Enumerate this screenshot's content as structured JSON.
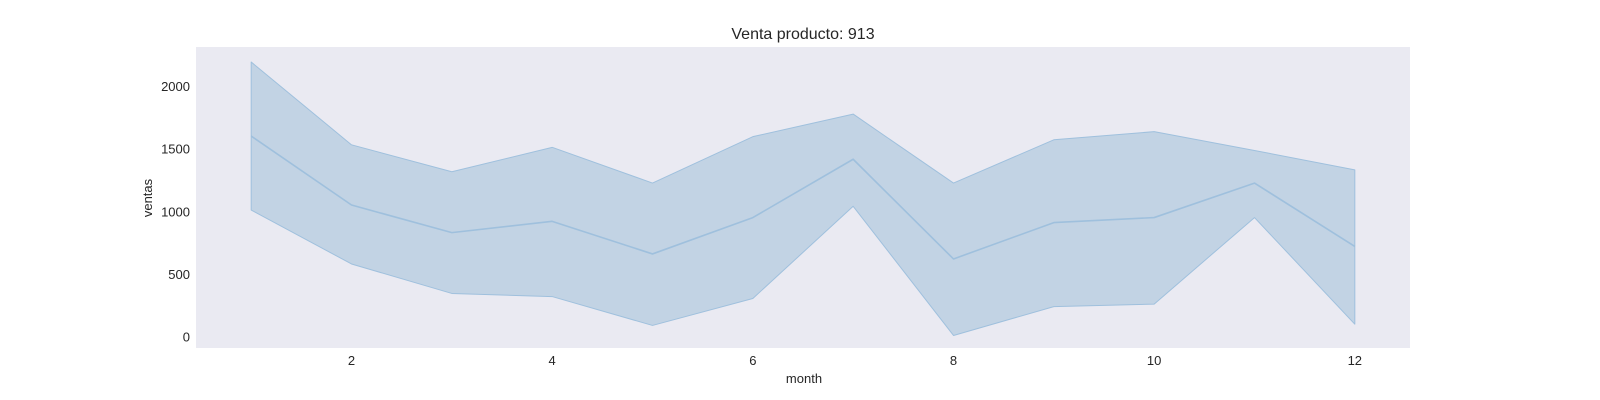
{
  "chart_data": {
    "type": "line",
    "title": "Venta producto: 913",
    "xlabel": "month",
    "ylabel": "ventas",
    "xlim": [
      0.45,
      12.55
    ],
    "ylim": [
      -90,
      2310
    ],
    "xticks": [
      2,
      4,
      6,
      8,
      10,
      12
    ],
    "yticks": [
      0,
      500,
      1000,
      1500,
      2000
    ],
    "grid": false,
    "background": "#eaeaf2",
    "series": [
      {
        "x": [
          1,
          2,
          3,
          4,
          5,
          6,
          7,
          8,
          9,
          10,
          11,
          12
        ],
        "y": [
          1600,
          1050,
          830,
          920,
          660,
          950,
          1415,
          620,
          910,
          950,
          1225,
          720
        ],
        "ci_low": [
          1010,
          580,
          345,
          320,
          90,
          305,
          1040,
          10,
          240,
          260,
          950,
          100
        ],
        "ci_high": [
          2190,
          1530,
          1315,
          1510,
          1225,
          1595,
          1775,
          1225,
          1570,
          1635,
          1485,
          1330
        ],
        "color": "#9fc0dd",
        "fill_color": "#c2d3e4"
      }
    ]
  }
}
